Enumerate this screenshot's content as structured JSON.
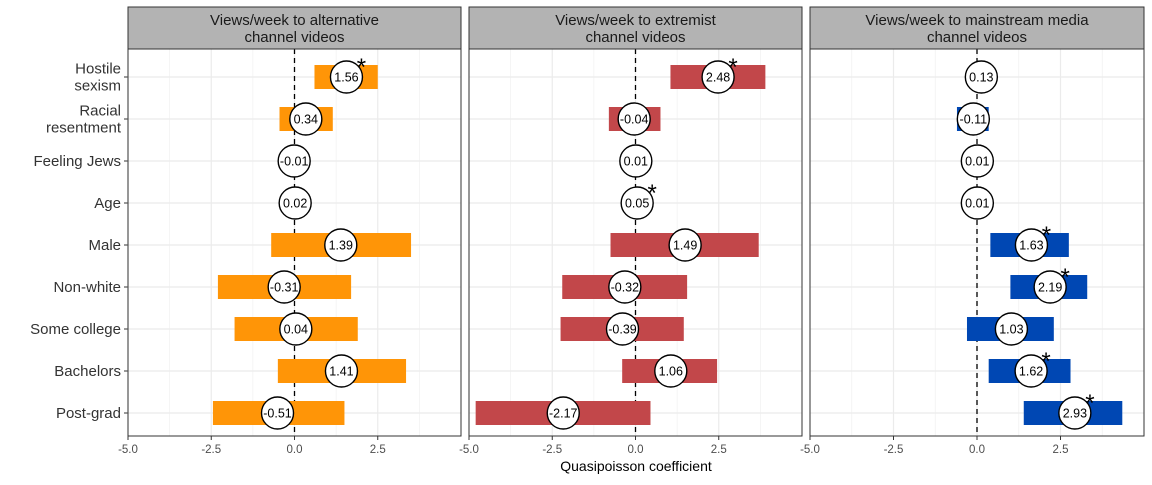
{
  "chart_data": {
    "type": "bar",
    "xlabel": "Quasipoisson coefficient",
    "xlim": [
      -5,
      5
    ],
    "xticks": [
      -5,
      -2.5,
      0,
      2.5
    ],
    "xtick_labels": [
      "-5.0",
      "-2.5",
      "0.0",
      "2.5"
    ],
    "categories": [
      "Hostile sexism",
      "Racial resentment",
      "Feeling Jews",
      "Age",
      "Male",
      "Non-white",
      "Some college",
      "Bachelors",
      "Post-grad"
    ],
    "category_labels": [
      [
        "Hostile",
        "sexism"
      ],
      [
        "Racial",
        "resentment"
      ],
      [
        "Feeling Jews"
      ],
      [
        "Age"
      ],
      [
        "Male"
      ],
      [
        "Non-white"
      ],
      [
        "Some college"
      ],
      [
        "Bachelors"
      ],
      [
        "Post-grad"
      ]
    ],
    "grid": true,
    "panels": [
      {
        "title": [
          "Views/week to alternative",
          "channel videos"
        ],
        "color": "#FF9507",
        "estimates": [
          1.56,
          0.34,
          -0.01,
          0.02,
          1.39,
          -0.31,
          0.04,
          1.41,
          -0.51
        ],
        "estimate_labels": [
          "1.56",
          "0.34",
          "-0.01",
          "0.02",
          "1.39",
          "-0.31",
          "0.04",
          "1.41",
          "-0.51"
        ],
        "ci_low": [
          0.6,
          -0.45,
          -0.01,
          0.02,
          -0.7,
          -2.3,
          -1.8,
          -0.5,
          -2.45
        ],
        "ci_high": [
          2.5,
          1.15,
          -0.01,
          0.02,
          3.5,
          1.7,
          1.9,
          3.35,
          1.5
        ],
        "significant": [
          true,
          false,
          false,
          false,
          false,
          false,
          false,
          false,
          false
        ]
      },
      {
        "title": [
          "Views/week to extremist",
          "channel videos"
        ],
        "color": "#C2474A",
        "estimates": [
          2.48,
          -0.04,
          0.01,
          0.05,
          1.49,
          -0.32,
          -0.39,
          1.06,
          -2.17
        ],
        "estimate_labels": [
          "2.48",
          "-0.04",
          "0.01",
          "0.05",
          "1.49",
          "-0.32",
          "-0.39",
          "1.06",
          "-2.17"
        ],
        "ci_low": [
          1.05,
          -0.8,
          0.01,
          0.05,
          -0.75,
          -2.2,
          -2.25,
          -0.4,
          -4.8
        ],
        "ci_high": [
          3.9,
          0.75,
          0.01,
          0.05,
          3.7,
          1.55,
          1.45,
          2.45,
          0.45
        ],
        "significant": [
          true,
          false,
          false,
          true,
          false,
          false,
          false,
          false,
          false
        ]
      },
      {
        "title": [
          "Views/week to mainstream media",
          "channel videos"
        ],
        "color": "#0047B3",
        "estimates": [
          0.13,
          -0.11,
          0.01,
          0.01,
          1.63,
          2.19,
          1.03,
          1.62,
          2.93
        ],
        "estimate_labels": [
          "0.13",
          "-0.11",
          "0.01",
          "0.01",
          "1.63",
          "2.19",
          "1.03",
          "1.62",
          "2.93"
        ],
        "ci_low": [
          0.13,
          -0.6,
          0.01,
          0.01,
          0.4,
          1.0,
          -0.3,
          0.35,
          1.4
        ],
        "ci_high": [
          0.13,
          0.35,
          0.01,
          0.01,
          2.75,
          3.3,
          2.3,
          2.8,
          4.35
        ],
        "significant": [
          false,
          false,
          false,
          false,
          true,
          true,
          false,
          true,
          true
        ]
      }
    ],
    "reference_line": 0,
    "significance_marker": "*"
  }
}
